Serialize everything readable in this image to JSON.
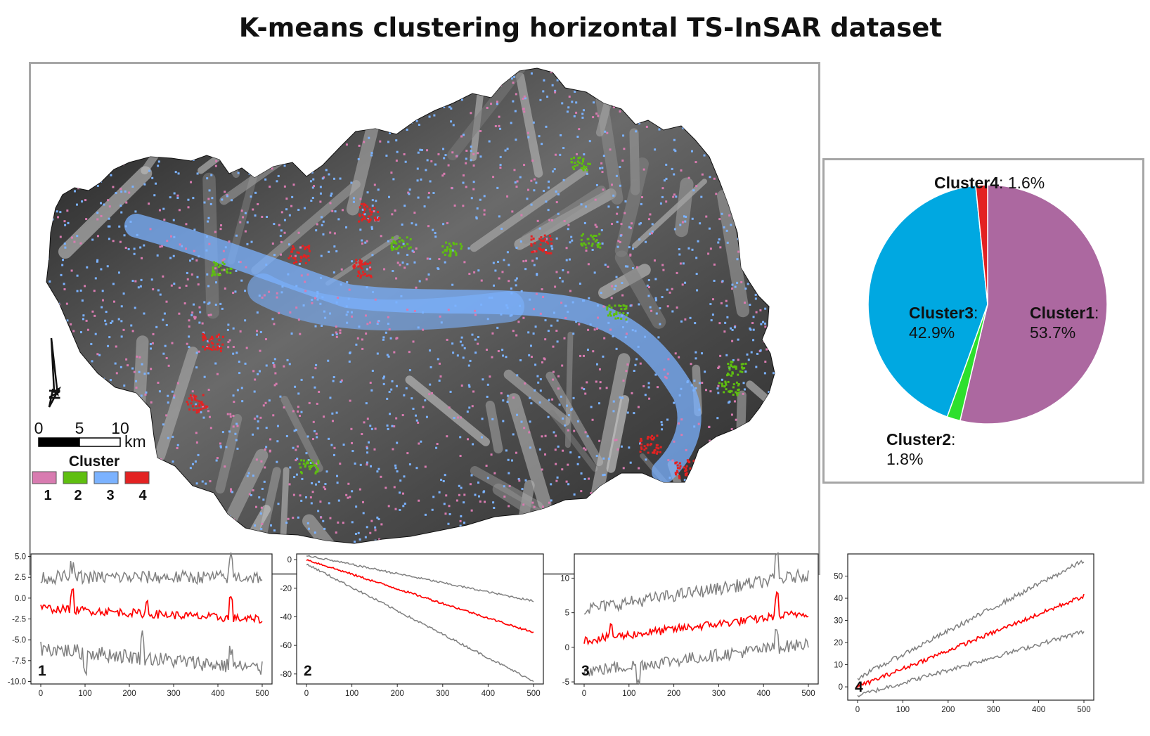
{
  "figure_title": "K-means clustering horizontal TS-InSAR dataset",
  "colors": {
    "cluster1_map": "#d87bb0",
    "cluster2_map": "#5fbf10",
    "cluster3_map": "#7bb2ff",
    "cluster4_map": "#e32222",
    "cluster1_pie": "#ac68a0",
    "cluster2_pie": "#2de02d",
    "cluster3_pie": "#00a8e1",
    "cluster4_pie": "#e32222",
    "mean_line": "#ff0000",
    "envelope_line": "#808080"
  },
  "map": {
    "north_letter": "N",
    "scale_ticks": [
      "0",
      "5",
      "10"
    ],
    "scale_unit": "km",
    "legend_title": "Cluster",
    "legend_items": [
      {
        "label": "1",
        "color": "#d87bb0"
      },
      {
        "label": "2",
        "color": "#5fbf10"
      },
      {
        "label": "3",
        "color": "#7bb2ff"
      },
      {
        "label": "4",
        "color": "#e32222"
      }
    ]
  },
  "chart_data": [
    {
      "type": "pie",
      "slices": [
        {
          "name": "Cluster1",
          "value": 53.7,
          "label": "53.7%",
          "color": "#ac68a0"
        },
        {
          "name": "Cluster2",
          "value": 1.8,
          "label": "1.8%",
          "color": "#2de02d"
        },
        {
          "name": "Cluster3",
          "value": 42.9,
          "label": "42.9%",
          "color": "#00a8e1"
        },
        {
          "name": "Cluster4",
          "value": 1.6,
          "label": "1.6%",
          "color": "#e32222"
        }
      ]
    },
    {
      "type": "line",
      "panel_label": "1",
      "xlim": [
        0,
        500
      ],
      "ylim": [
        -10.3,
        5.3
      ],
      "xticks": [
        0,
        100,
        200,
        300,
        400,
        500
      ],
      "yticks": [
        -10.0,
        -7.5,
        -5.0,
        -2.5,
        0.0,
        2.5,
        5.0
      ],
      "ytick_labels": [
        "-10.0",
        "-7.5",
        "-5.0",
        "-2.5",
        "0.0",
        "2.5",
        "5.0"
      ],
      "series": [
        {
          "role": "upper",
          "start": 2.5,
          "end": 2.5,
          "noise": 0.8,
          "spikes": [
            [
              70,
              1.2
            ],
            [
              430,
              2.3
            ]
          ]
        },
        {
          "role": "mean",
          "start": -1.2,
          "end": -2.6,
          "noise": 0.5,
          "spikes": [
            [
              70,
              2.0
            ],
            [
              240,
              1.4
            ],
            [
              430,
              2.3
            ]
          ]
        },
        {
          "role": "lower",
          "start": -6.0,
          "end": -8.5,
          "noise": 0.9,
          "spikes": [
            [
              100,
              -2.0
            ],
            [
              230,
              2.5
            ],
            [
              430,
              2.0
            ]
          ]
        }
      ]
    },
    {
      "type": "line",
      "panel_label": "2",
      "xlim": [
        0,
        500
      ],
      "ylim": [
        -87,
        4
      ],
      "xticks": [
        0,
        100,
        200,
        300,
        400,
        500
      ],
      "yticks": [
        -80,
        -60,
        -40,
        -20,
        0
      ],
      "ytick_labels": [
        "-80",
        "-60",
        "-40",
        "-20",
        "0"
      ],
      "series": [
        {
          "role": "upper",
          "start": 3,
          "end": -29,
          "noise": 0.6,
          "spikes": []
        },
        {
          "role": "mean",
          "start": 0,
          "end": -51,
          "noise": 0.6,
          "spikes": []
        },
        {
          "role": "lower",
          "start": -3,
          "end": -85,
          "noise": 0.6,
          "spikes": []
        }
      ]
    },
    {
      "type": "line",
      "panel_label": "3",
      "xlim": [
        0,
        500
      ],
      "ylim": [
        -5.3,
        13.5
      ],
      "xticks": [
        0,
        100,
        200,
        300,
        400,
        500
      ],
      "yticks": [
        -5,
        0,
        5,
        10
      ],
      "ytick_labels": [
        "-5",
        "0",
        "5",
        "10"
      ],
      "series": [
        {
          "role": "upper",
          "start": 5.5,
          "end": 10.5,
          "noise": 0.9,
          "spikes": [
            [
              430,
              3.5
            ]
          ]
        },
        {
          "role": "mean",
          "start": 1.0,
          "end": 5.0,
          "noise": 0.6,
          "spikes": [
            [
              60,
              2.0
            ],
            [
              430,
              3.0
            ]
          ]
        },
        {
          "role": "lower",
          "start": -3.5,
          "end": 0.5,
          "noise": 0.9,
          "spikes": [
            [
              120,
              -2.5
            ],
            [
              430,
              2.5
            ]
          ]
        }
      ]
    },
    {
      "type": "line",
      "panel_label": "4",
      "xlim": [
        0,
        500
      ],
      "ylim": [
        -6,
        60
      ],
      "xticks": [
        0,
        100,
        200,
        300,
        400,
        500
      ],
      "yticks": [
        0,
        10,
        20,
        30,
        40,
        50
      ],
      "ytick_labels": [
        "0",
        "10",
        "20",
        "30",
        "40",
        "50"
      ],
      "series": [
        {
          "role": "upper",
          "start": 4,
          "end": 57,
          "noise": 0.9,
          "spikes": []
        },
        {
          "role": "mean",
          "start": 0,
          "end": 41,
          "noise": 0.8,
          "spikes": []
        },
        {
          "role": "lower",
          "start": -4,
          "end": 25,
          "noise": 0.9,
          "spikes": []
        }
      ]
    }
  ]
}
